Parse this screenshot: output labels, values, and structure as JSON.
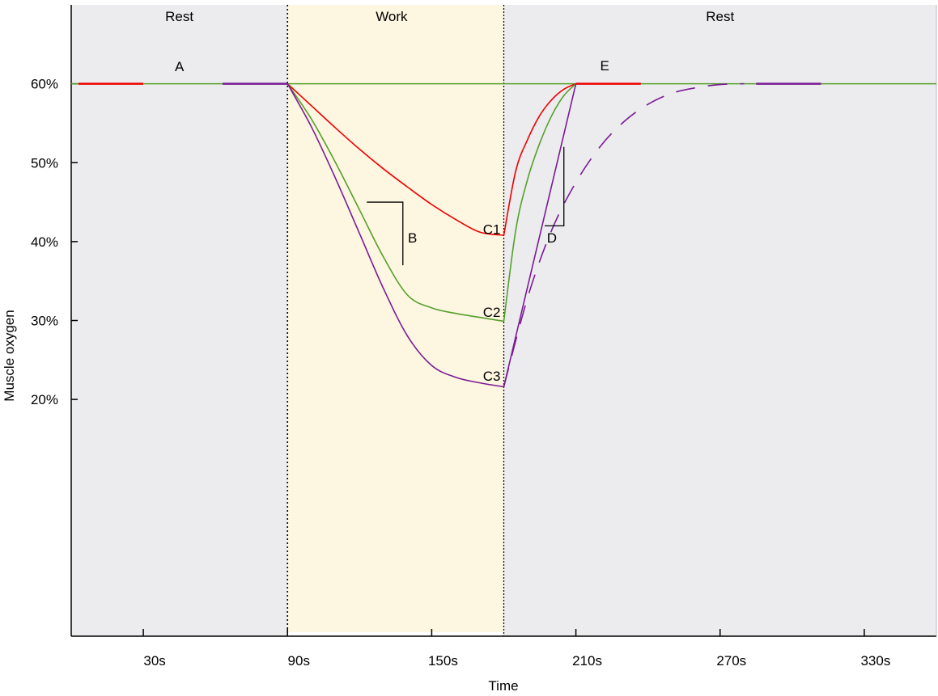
{
  "chart_data": {
    "type": "line",
    "title": "",
    "xlabel": "Time",
    "ylabel": "Muscle oxygen",
    "xlim": [
      0,
      360
    ],
    "ylim": [
      -10,
      70
    ],
    "x_ticks": [
      30,
      90,
      150,
      210,
      270,
      330
    ],
    "x_tick_labels": [
      "30s",
      "90s",
      "150s",
      "210s",
      "270s",
      "330s"
    ],
    "y_ticks": [
      20,
      30,
      40,
      50,
      60
    ],
    "y_tick_labels": [
      "20%",
      "30%",
      "40%",
      "50%",
      "60%"
    ],
    "grid": false,
    "legend": "none",
    "phases": [
      {
        "label": "Rest",
        "x_start": 0,
        "x_end": 90,
        "color": "#ececee"
      },
      {
        "label": "Work",
        "x_start": 90,
        "x_end": 180,
        "color": "#fdf6e0"
      },
      {
        "label": "Rest",
        "x_start": 180,
        "x_end": 360,
        "color": "#ececee"
      }
    ],
    "series": [
      {
        "color": "#ee0000",
        "style": "solid",
        "x": [
          90,
          100,
          110,
          120,
          130,
          140,
          150,
          160,
          170,
          180,
          185,
          190,
          195,
          200,
          205,
          210
        ],
        "values": [
          60,
          57.2,
          54.4,
          51.7,
          49.2,
          46.9,
          44.7,
          42.8,
          41.2,
          40.8,
          49,
          53,
          56,
          58,
          59.3,
          60
        ]
      },
      {
        "color": "#55a02a",
        "style": "solid",
        "x": [
          90,
          100,
          110,
          120,
          130,
          140,
          150,
          160,
          170,
          180,
          185,
          190,
          195,
          200,
          205,
          210
        ],
        "values": [
          60,
          55.5,
          50,
          44,
          38,
          33.2,
          31.6,
          30.9,
          30.4,
          29.9,
          41.5,
          48,
          52.5,
          56,
          58.5,
          60
        ]
      },
      {
        "color": "#7a1a96",
        "style": "solid",
        "x": [
          90,
          100,
          110,
          120,
          130,
          140,
          150,
          160,
          170,
          180,
          210
        ],
        "values": [
          60,
          54.5,
          48,
          41,
          34,
          28,
          24.3,
          22.8,
          22.1,
          21.6,
          60
        ]
      },
      {
        "color": "#7a1a96",
        "style": "dashed",
        "x": [
          180,
          190,
          200,
          210,
          220,
          230,
          240,
          250,
          260,
          270,
          280
        ],
        "values": [
          21.6,
          33,
          41.5,
          47.5,
          52,
          55.2,
          57.4,
          58.8,
          59.5,
          59.9,
          60
        ]
      }
    ],
    "baseline": {
      "value": 60,
      "x_start": 0,
      "x_end": 360,
      "color": "#55a02a",
      "segments": [
        {
          "color": "#ee0000",
          "x_start": 3,
          "x_end": 30
        },
        {
          "color": "#7a1a96",
          "x_start": 63,
          "x_end": 90
        },
        {
          "color": "#ee0000",
          "x_start": 210,
          "x_end": 237
        },
        {
          "color": "#7a1a96",
          "x_start": 285,
          "x_end": 312
        }
      ]
    },
    "markers": [
      {
        "type": "vline",
        "x": 90,
        "style": "dotted"
      },
      {
        "type": "vline",
        "x": 180,
        "style": "dotted"
      }
    ],
    "slope_triangles": [
      {
        "label": "B",
        "x_start": 123,
        "x_end": 138,
        "y_top": 45,
        "y_bottom": 37
      },
      {
        "label": "D",
        "x_start": 197,
        "x_end": 205,
        "y_top": 52,
        "y_bottom": 42
      }
    ],
    "annotations": [
      {
        "text": "A",
        "x": 45,
        "y": 62.2
      },
      {
        "text": "E",
        "x": 222,
        "y": 62.3
      },
      {
        "text": "C1",
        "x": 175,
        "y": 41.6
      },
      {
        "text": "C2",
        "x": 175,
        "y": 31.1
      },
      {
        "text": "C3",
        "x": 175,
        "y": 23
      },
      {
        "text": "B",
        "x": 142,
        "y": 40.5
      },
      {
        "text": "D",
        "x": 200,
        "y": 40.5
      }
    ]
  }
}
